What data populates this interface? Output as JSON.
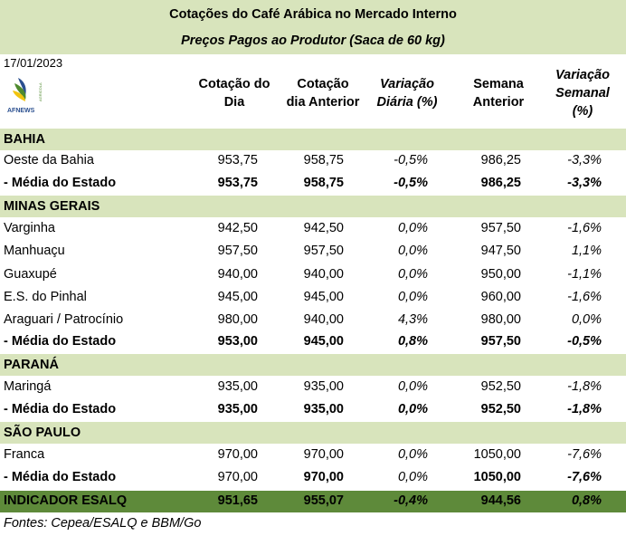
{
  "title": "Cotações do Café Arábica no Mercado Interno",
  "subtitle": "Preços Pagos ao Produtor (Saca de 60 kg)",
  "date": "17/01/2023",
  "logo": {
    "text": "AFNEWS",
    "side_text": "AGRICOLA",
    "icon": "afnews-logo-icon"
  },
  "headers": {
    "col1_line1": "Cotação do",
    "col1_line2": "Dia",
    "col2_line1": "Cotação",
    "col2_line2": "dia Anterior",
    "col3_line1": "Variação",
    "col3_line2": "Diária (%)",
    "col4_line1": "Semana",
    "col4_line2": "Anterior",
    "col5_line1": "Variação",
    "col5_line2": "Semanal",
    "col5_line3": "(%)"
  },
  "sections": {
    "bahia": {
      "label": "BAHIA",
      "rows": [
        {
          "name": "Oeste da Bahia",
          "dia": "953,75",
          "anterior": "958,75",
          "var_diaria": "-0,5%",
          "semana": "986,25",
          "var_semanal": "-3,3%"
        }
      ],
      "media": {
        "name": " - Média do Estado",
        "dia": "953,75",
        "anterior": "958,75",
        "var_diaria": "-0,5%",
        "semana": "986,25",
        "var_semanal": "-3,3%"
      }
    },
    "minas": {
      "label": "MINAS GERAIS",
      "rows": [
        {
          "name": "Varginha",
          "dia": "942,50",
          "anterior": "942,50",
          "var_diaria": "0,0%",
          "semana": "957,50",
          "var_semanal": "-1,6%"
        },
        {
          "name": "Manhuaçu",
          "dia": "957,50",
          "anterior": "957,50",
          "var_diaria": "0,0%",
          "semana": "947,50",
          "var_semanal": "1,1%"
        },
        {
          "name": "Guaxupé",
          "dia": "940,00",
          "anterior": "940,00",
          "var_diaria": "0,0%",
          "semana": "950,00",
          "var_semanal": "-1,1%"
        },
        {
          "name": "E.S. do Pinhal",
          "dia": "945,00",
          "anterior": "945,00",
          "var_diaria": "0,0%",
          "semana": "960,00",
          "var_semanal": "-1,6%"
        },
        {
          "name": "Araguari /  Patrocínio",
          "dia": "980,00",
          "anterior": "940,00",
          "var_diaria": "4,3%",
          "semana": "980,00",
          "var_semanal": "0,0%"
        }
      ],
      "media": {
        "name": " - Média do Estado",
        "dia": "953,00",
        "anterior": "945,00",
        "var_diaria": "0,8%",
        "semana": "957,50",
        "var_semanal": "-0,5%"
      }
    },
    "parana": {
      "label": "PARANÁ",
      "rows": [
        {
          "name": "Maringá",
          "dia": "935,00",
          "anterior": "935,00",
          "var_diaria": "0,0%",
          "semana": "952,50",
          "var_semanal": "-1,8%"
        }
      ],
      "media": {
        "name": " - Média do Estado",
        "dia": "935,00",
        "anterior": "935,00",
        "var_diaria": "0,0%",
        "semana": "952,50",
        "var_semanal": "-1,8%"
      }
    },
    "sao_paulo": {
      "label": "SÃO PAULO",
      "rows": [
        {
          "name": "Franca",
          "dia": "970,00",
          "anterior": "970,00",
          "var_diaria": "0,0%",
          "semana": "1050,00",
          "var_semanal": "-7,6%"
        }
      ],
      "media": {
        "name": " - Média do Estado",
        "dia": "970,00",
        "anterior": "970,00",
        "var_diaria": "0,0%",
        "semana": "1050,00",
        "var_semanal": "-7,6%"
      }
    }
  },
  "indicator": {
    "name": "INDICADOR ESALQ",
    "dia": "951,65",
    "anterior": "955,07",
    "var_diaria": "-0,4%",
    "semana": "944,56",
    "var_semanal": "0,8%"
  },
  "footer": "Fontes: Cepea/ESALQ e BBM/Go",
  "colors": {
    "section_bg": "#d8e4bc",
    "indicator_bg": "#5e8a3a",
    "logo_green": "#4f8a2e",
    "logo_blue": "#2a4f8f",
    "logo_yellow": "#f1c40f"
  }
}
